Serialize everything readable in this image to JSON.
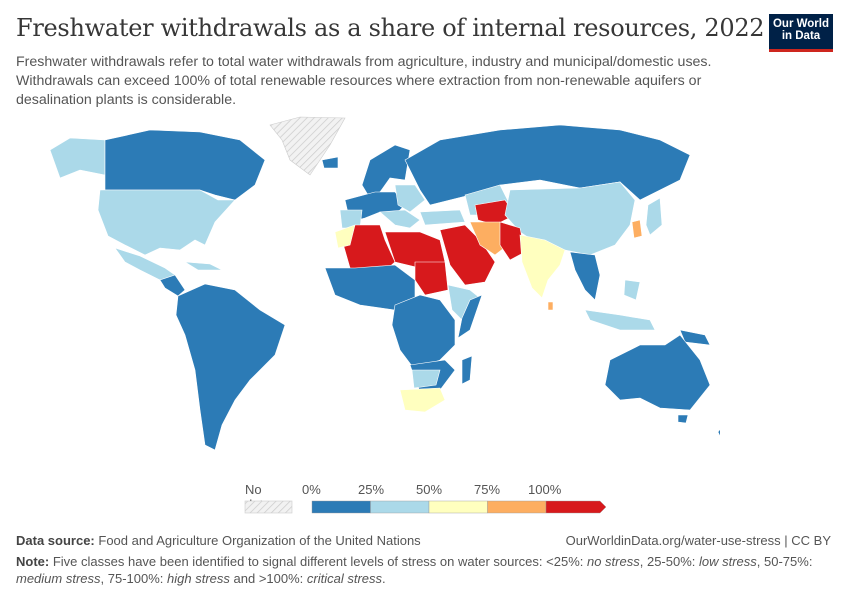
{
  "header": {
    "title": "Freshwater withdrawals as a share of internal resources, 2022",
    "subtitle": "Freshwater withdrawals refer to total water withdrawals from agriculture, industry and municipal/domestic uses. Withdrawals can exceed 100% of total renewable resources where extraction from non-renewable aquifers or desalination plants is considerable.",
    "logo": "Our World in Data"
  },
  "colors": {
    "no_stress": "#2c7bb6",
    "low_stress": "#abd9e9",
    "medium_stress": "#ffffbf",
    "high_stress": "#fdae61",
    "critical_stress": "#d7191c",
    "no_data": "#e8e8e8",
    "border": "#ffffff"
  },
  "legend": {
    "no_data_label": "No data",
    "ticks": [
      "0%",
      "25%",
      "50%",
      "75%",
      "100%"
    ]
  },
  "footer": {
    "source_label": "Data source:",
    "source": "Food and Agriculture Organization of the United Nations",
    "url": "OurWorldinData.org/water-use-stress | CC BY",
    "note_label": "Note:",
    "note_a": "Five classes have been identified to signal different levels of stress on water sources: <25%: ",
    "note_b": "no stress",
    "note_c": ", 25-50%: ",
    "note_d": "low stress",
    "note_e": ", 50-75%: ",
    "note_f": "medium stress",
    "note_g": ", 75-100%: ",
    "note_h": "high stress",
    "note_i": " and >100%: ",
    "note_j": "critical stress",
    "note_k": "."
  }
}
